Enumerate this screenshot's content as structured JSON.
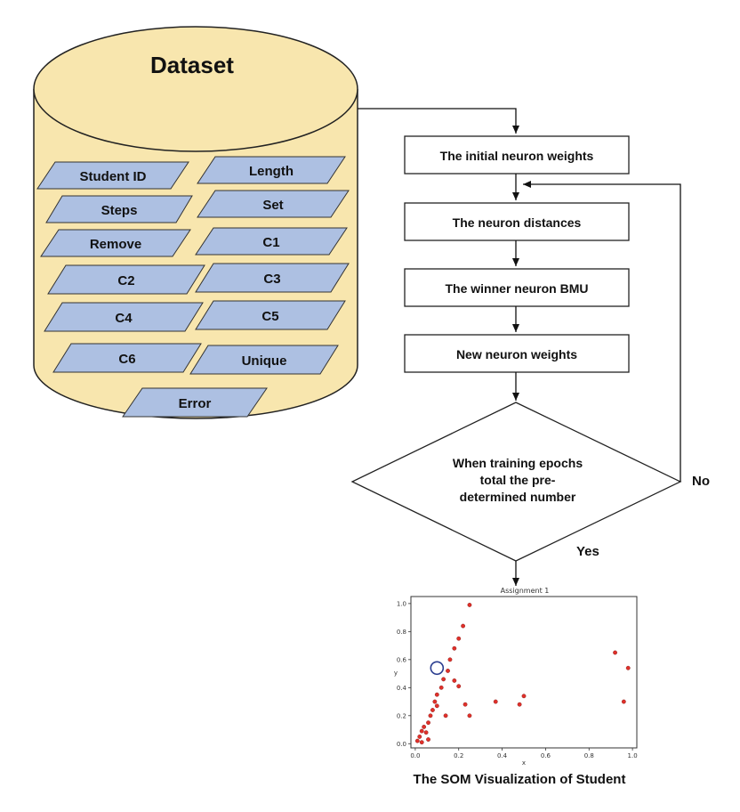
{
  "dataset": {
    "title": "Dataset",
    "fields": [
      "Student ID",
      "Length",
      "Steps",
      "Set",
      "Remove",
      "C1",
      "C2",
      "C3",
      "C4",
      "C5",
      "C6",
      "Unique",
      "Error"
    ]
  },
  "flow": {
    "steps": [
      "The initial neuron weights",
      "The neuron distances",
      "The winner neuron BMU",
      "New neuron weights"
    ],
    "decision_lines": [
      "When training epochs",
      "total the pre-",
      "determined number"
    ],
    "no_label": "No",
    "yes_label": "Yes"
  },
  "plot": {
    "title": "Assignment 1",
    "caption": "The SOM Visualization of Student",
    "xlabel": "x",
    "ylabel": "y"
  },
  "chart_data": {
    "type": "scatter",
    "title": "Assignment 1",
    "xlabel": "x",
    "ylabel": "y",
    "xlim": [
      -0.02,
      1.02
    ],
    "ylim": [
      -0.03,
      1.05
    ],
    "xticks": [
      "0.0",
      "0.2",
      "0.4",
      "0.6",
      "0.8",
      "1.0"
    ],
    "yticks": [
      "0.0",
      "0.2",
      "0.4",
      "0.6",
      "0.8",
      "1.0"
    ],
    "points": [
      {
        "x": 0.01,
        "y": 0.02
      },
      {
        "x": 0.02,
        "y": 0.05
      },
      {
        "x": 0.03,
        "y": 0.09
      },
      {
        "x": 0.04,
        "y": 0.12
      },
      {
        "x": 0.05,
        "y": 0.08
      },
      {
        "x": 0.06,
        "y": 0.15
      },
      {
        "x": 0.07,
        "y": 0.2
      },
      {
        "x": 0.08,
        "y": 0.24
      },
      {
        "x": 0.09,
        "y": 0.3
      },
      {
        "x": 0.1,
        "y": 0.27
      },
      {
        "x": 0.1,
        "y": 0.35
      },
      {
        "x": 0.12,
        "y": 0.4
      },
      {
        "x": 0.13,
        "y": 0.46
      },
      {
        "x": 0.15,
        "y": 0.52
      },
      {
        "x": 0.16,
        "y": 0.6
      },
      {
        "x": 0.18,
        "y": 0.68
      },
      {
        "x": 0.2,
        "y": 0.75
      },
      {
        "x": 0.22,
        "y": 0.84
      },
      {
        "x": 0.25,
        "y": 0.99
      },
      {
        "x": 0.18,
        "y": 0.45
      },
      {
        "x": 0.2,
        "y": 0.41
      },
      {
        "x": 0.14,
        "y": 0.2
      },
      {
        "x": 0.23,
        "y": 0.28
      },
      {
        "x": 0.25,
        "y": 0.2
      },
      {
        "x": 0.37,
        "y": 0.3
      },
      {
        "x": 0.5,
        "y": 0.34
      },
      {
        "x": 0.48,
        "y": 0.28
      },
      {
        "x": 0.92,
        "y": 0.65
      },
      {
        "x": 0.98,
        "y": 0.54
      },
      {
        "x": 0.96,
        "y": 0.3
      },
      {
        "x": 0.03,
        "y": 0.01
      },
      {
        "x": 0.06,
        "y": 0.03
      }
    ],
    "highlight": {
      "x": 0.1,
      "y": 0.54
    }
  },
  "colors": {
    "cylinder_fill": "#f8e6ae",
    "field_fill": "#adc0e2",
    "marker": "#e0302a",
    "highlight_ring": "#2a3d8f"
  }
}
